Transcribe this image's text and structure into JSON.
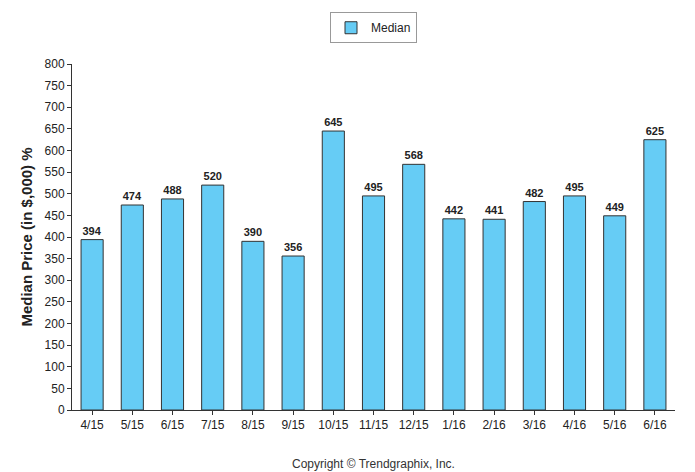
{
  "chart_data": {
    "type": "bar",
    "y_label": "Median Price (in $,000) %",
    "categories": [
      "4/15",
      "5/15",
      "6/15",
      "7/15",
      "8/15",
      "9/15",
      "10/15",
      "11/15",
      "12/15",
      "1/16",
      "2/16",
      "3/16",
      "4/16",
      "5/16",
      "6/16"
    ],
    "series": [
      {
        "name": "Median",
        "color": "#66ccf5",
        "values": [
          394,
          474,
          488,
          520,
          390,
          356,
          645,
          495,
          568,
          442,
          441,
          482,
          495,
          449,
          625
        ]
      }
    ],
    "ylim": [
      0,
      800
    ],
    "yticks": [
      0,
      50,
      100,
      150,
      200,
      250,
      300,
      350,
      400,
      450,
      500,
      550,
      600,
      650,
      700,
      750,
      800
    ],
    "grid": false,
    "legend": "top",
    "data_labels": true,
    "annotations": [
      "Copyright © Trendgraphix, Inc."
    ]
  }
}
